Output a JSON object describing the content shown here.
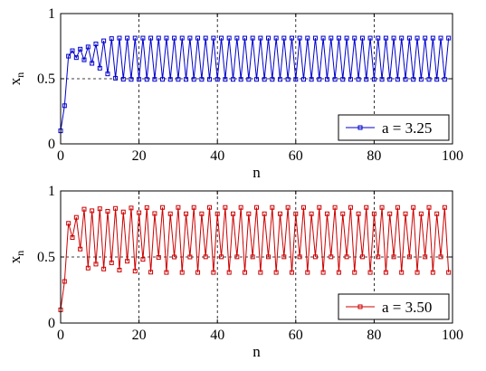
{
  "chart_data": [
    {
      "type": "line",
      "xlabel": "n",
      "ylabel": "x",
      "ylabel_subscript": "n",
      "xlim": [
        0,
        100
      ],
      "ylim": [
        0,
        1
      ],
      "xticks": [
        0,
        20,
        40,
        60,
        80,
        100
      ],
      "yticks": [
        0,
        0.5,
        1
      ],
      "xtick_labels": [
        "0",
        "20",
        "40",
        "60",
        "80",
        "100"
      ],
      "ytick_labels": [
        "0",
        "0.5",
        "1"
      ],
      "grid": "dashed vertical lines at 20, 40, 60, 80 and dashed horizontal line at 0.5",
      "legend_position": "bottom-right",
      "marker": "square",
      "series": [
        {
          "name": "a = 3.25",
          "color": "#0000cc",
          "a": 3.25,
          "x0": 0.1,
          "x": [
            0,
            1,
            2,
            3,
            4,
            5,
            6,
            7,
            8,
            9,
            10,
            11,
            12,
            13,
            14,
            15,
            16,
            17,
            18,
            19,
            20,
            21,
            22,
            23,
            24,
            25,
            26,
            27,
            28,
            29,
            30,
            31,
            32,
            33,
            34,
            35,
            36,
            37,
            38,
            39,
            40,
            41,
            42,
            43,
            44,
            45,
            46,
            47,
            48,
            49,
            50,
            51,
            52,
            53,
            54,
            55,
            56,
            57,
            58,
            59,
            60,
            61,
            62,
            63,
            64,
            65,
            66,
            67,
            68,
            69,
            70,
            71,
            72,
            73,
            74,
            75,
            76,
            77,
            78,
            79,
            80,
            81,
            82,
            83,
            84,
            85,
            86,
            87,
            88,
            89,
            90,
            91,
            92,
            93,
            94,
            95,
            96,
            97,
            98,
            99
          ],
          "values": [
            0.1,
            0.293,
            0.673,
            0.715,
            0.662,
            0.727,
            0.645,
            0.744,
            0.618,
            0.767,
            0.581,
            0.791,
            0.537,
            0.808,
            0.504,
            0.812,
            0.496,
            0.812,
            0.495,
            0.812,
            0.495,
            0.812,
            0.495,
            0.812,
            0.495,
            0.812,
            0.495,
            0.812,
            0.495,
            0.812,
            0.495,
            0.812,
            0.495,
            0.812,
            0.495,
            0.812,
            0.495,
            0.812,
            0.495,
            0.812,
            0.495,
            0.812,
            0.495,
            0.812,
            0.495,
            0.812,
            0.495,
            0.812,
            0.495,
            0.812,
            0.495,
            0.812,
            0.495,
            0.812,
            0.495,
            0.812,
            0.495,
            0.812,
            0.495,
            0.812,
            0.495,
            0.812,
            0.495,
            0.812,
            0.495,
            0.812,
            0.495,
            0.812,
            0.495,
            0.812,
            0.495,
            0.812,
            0.495,
            0.812,
            0.495,
            0.812,
            0.495,
            0.812,
            0.495,
            0.812,
            0.495,
            0.812,
            0.495,
            0.812,
            0.495,
            0.812,
            0.495,
            0.812,
            0.495,
            0.812,
            0.495,
            0.812,
            0.495,
            0.812,
            0.495,
            0.812,
            0.495,
            0.812,
            0.495,
            0.812
          ]
        }
      ]
    },
    {
      "type": "line",
      "xlabel": "n",
      "ylabel": "x",
      "ylabel_subscript": "n",
      "xlim": [
        0,
        100
      ],
      "ylim": [
        0,
        1
      ],
      "xticks": [
        0,
        20,
        40,
        60,
        80,
        100
      ],
      "yticks": [
        0,
        0.5,
        1
      ],
      "xtick_labels": [
        "0",
        "20",
        "40",
        "60",
        "80",
        "100"
      ],
      "ytick_labels": [
        "0",
        "0.5",
        "1"
      ],
      "grid": "dashed vertical lines at 20, 40, 60, 80 and dashed horizontal line at 0.5",
      "legend_position": "bottom-right",
      "marker": "square",
      "series": [
        {
          "name": "a = 3.50",
          "color": "#cc0000",
          "a": 3.5,
          "x0": 0.1,
          "x": [
            0,
            1,
            2,
            3,
            4,
            5,
            6,
            7,
            8,
            9,
            10,
            11,
            12,
            13,
            14,
            15,
            16,
            17,
            18,
            19,
            20,
            21,
            22,
            23,
            24,
            25,
            26,
            27,
            28,
            29,
            30,
            31,
            32,
            33,
            34,
            35,
            36,
            37,
            38,
            39,
            40,
            41,
            42,
            43,
            44,
            45,
            46,
            47,
            48,
            49,
            50,
            51,
            52,
            53,
            54,
            55,
            56,
            57,
            58,
            59,
            60,
            61,
            62,
            63,
            64,
            65,
            66,
            67,
            68,
            69,
            70,
            71,
            72,
            73,
            74,
            75,
            76,
            77,
            78,
            79,
            80,
            81,
            82,
            83,
            84,
            85,
            86,
            87,
            88,
            89,
            90,
            91,
            92,
            93,
            94,
            95,
            96,
            97,
            98,
            99
          ],
          "values": [
            0.1,
            0.315,
            0.755,
            0.647,
            0.8,
            0.56,
            0.862,
            0.416,
            0.85,
            0.446,
            0.865,
            0.409,
            0.846,
            0.456,
            0.868,
            0.401,
            0.841,
            0.468,
            0.871,
            0.393,
            0.835,
            0.482,
            0.874,
            0.385,
            0.829,
            0.497,
            0.875,
            0.383,
            0.827,
            0.5,
            0.875,
            0.383,
            0.827,
            0.5,
            0.875,
            0.383,
            0.827,
            0.501,
            0.875,
            0.383,
            0.827,
            0.501,
            0.875,
            0.383,
            0.827,
            0.501,
            0.875,
            0.383,
            0.827,
            0.501,
            0.875,
            0.383,
            0.827,
            0.501,
            0.875,
            0.383,
            0.827,
            0.501,
            0.875,
            0.383,
            0.827,
            0.501,
            0.875,
            0.383,
            0.827,
            0.501,
            0.875,
            0.383,
            0.827,
            0.501,
            0.875,
            0.383,
            0.827,
            0.501,
            0.875,
            0.383,
            0.827,
            0.501,
            0.875,
            0.383,
            0.827,
            0.501,
            0.875,
            0.383,
            0.827,
            0.501,
            0.875,
            0.383,
            0.827,
            0.501,
            0.875,
            0.383,
            0.827,
            0.501,
            0.875,
            0.383,
            0.827,
            0.501,
            0.875,
            0.383
          ]
        }
      ]
    }
  ]
}
